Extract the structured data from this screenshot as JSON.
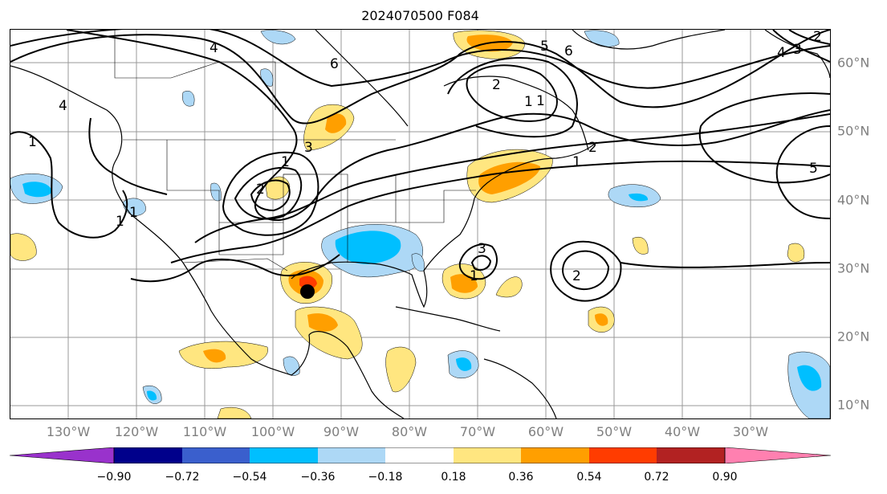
{
  "title": "2024070500 F084",
  "lon_labels": [
    "130°W",
    "120°W",
    "110°W",
    "100°W",
    "90°W",
    "80°W",
    "70°W",
    "60°W",
    "50°W",
    "40°W",
    "30°W"
  ],
  "lat_labels": [
    "60°N",
    "50°N",
    "40°N",
    "30°N",
    "20°N",
    "10°N"
  ],
  "colorbar": {
    "ticks": [
      "−0.90",
      "−0.72",
      "−0.54",
      "−0.36",
      "−0.18",
      "0.18",
      "0.36",
      "0.54",
      "0.72",
      "0.90"
    ],
    "colors": [
      "#9932cc",
      "#00008b",
      "#3a5fcd",
      "#00bfff",
      "#add8f6",
      "#ffffff",
      "#ffe680",
      "#ff9f00",
      "#ff3c00",
      "#b22222",
      "#ff80b0"
    ]
  },
  "contour_labels": [
    "4",
    "6",
    "5",
    "6",
    "4",
    "3",
    "2",
    "1",
    "1",
    "3",
    "1",
    "2",
    "1",
    "5",
    "3",
    "1",
    "1",
    "2",
    "4",
    "1",
    "2",
    "2",
    "1"
  ],
  "marker": "storm-center",
  "colors": {
    "negative_fill": "#00bfff",
    "positive_fill": "#ff9f00",
    "contour": "#000000"
  }
}
